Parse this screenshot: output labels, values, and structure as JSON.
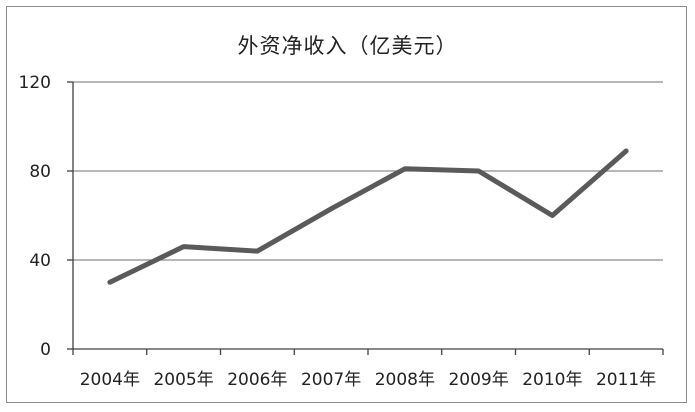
{
  "chart_data": {
    "type": "line",
    "title": "外资净收入（亿美元）",
    "xlabel": "",
    "ylabel": "",
    "categories": [
      "2004年",
      "2005年",
      "2006年",
      "2007年",
      "2008年",
      "2009年",
      "2010年",
      "2011年"
    ],
    "series": [
      {
        "values": [
          30,
          46,
          44,
          63,
          81,
          80,
          60,
          89
        ]
      }
    ],
    "ylim": [
      0,
      120
    ],
    "yticks": [
      0,
      40,
      80,
      120
    ],
    "grid": true,
    "legend": "none",
    "colors": {
      "line": "#5a5a5a",
      "grid": "#8c8c8c",
      "axis": "#404040"
    }
  }
}
